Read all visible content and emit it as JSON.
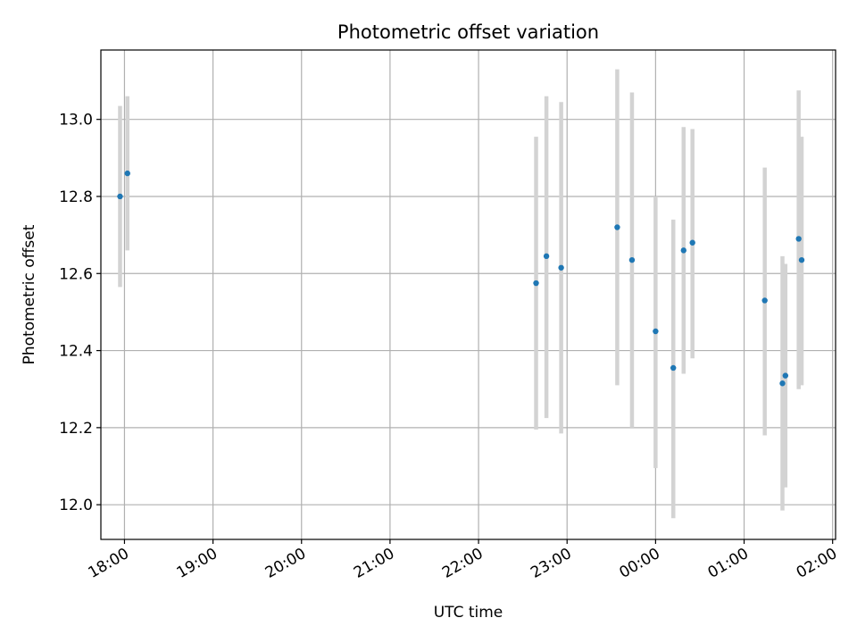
{
  "chart_data": {
    "type": "scatter",
    "title": "Photometric offset variation",
    "xlabel": "UTC time",
    "ylabel": "Photometric offset",
    "x_ticks": [
      "18:00",
      "19:00",
      "20:00",
      "21:00",
      "22:00",
      "23:00",
      "00:00",
      "01:00",
      "02:00"
    ],
    "y_ticks": [
      "12.0",
      "12.2",
      "12.4",
      "12.6",
      "12.8",
      "13.0"
    ],
    "xlim": [
      "17:44",
      "02:02"
    ],
    "ylim": [
      11.91,
      13.18
    ],
    "grid": true,
    "point_color": "#1f77b4",
    "errorbar_color": "#d3d3d3",
    "points": [
      {
        "time": "17:57",
        "value": 12.8,
        "low": 12.565,
        "high": 13.035
      },
      {
        "time": "18:02",
        "value": 12.86,
        "low": 12.66,
        "high": 13.06
      },
      {
        "time": "22:39",
        "value": 12.575,
        "low": 12.195,
        "high": 12.955
      },
      {
        "time": "22:46",
        "value": 12.645,
        "low": 12.225,
        "high": 13.06
      },
      {
        "time": "22:56",
        "value": 12.615,
        "low": 12.185,
        "high": 13.045
      },
      {
        "time": "23:34",
        "value": 12.72,
        "low": 12.31,
        "high": 13.13
      },
      {
        "time": "23:44",
        "value": 12.635,
        "low": 12.2,
        "high": 13.07
      },
      {
        "time": "00:00",
        "value": 12.45,
        "low": 12.095,
        "high": 12.8
      },
      {
        "time": "00:12",
        "value": 12.355,
        "low": 11.965,
        "high": 12.74
      },
      {
        "time": "00:19",
        "value": 12.66,
        "low": 12.34,
        "high": 12.98
      },
      {
        "time": "00:25",
        "value": 12.68,
        "low": 12.38,
        "high": 12.975
      },
      {
        "time": "01:14",
        "value": 12.53,
        "low": 12.18,
        "high": 12.875
      },
      {
        "time": "01:26",
        "value": 12.315,
        "low": 11.985,
        "high": 12.645
      },
      {
        "time": "01:28",
        "value": 12.335,
        "low": 12.045,
        "high": 12.625
      },
      {
        "time": "01:37",
        "value": 12.69,
        "low": 12.3,
        "high": 13.075
      },
      {
        "time": "01:39",
        "value": 12.635,
        "low": 12.31,
        "high": 12.955
      }
    ]
  }
}
